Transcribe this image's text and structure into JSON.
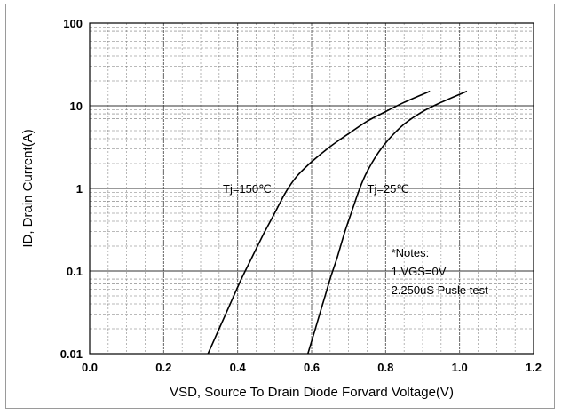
{
  "chart_data": {
    "type": "line",
    "xlabel": "VSD, Source To Drain Diode Forvard Voltage(V)",
    "ylabel": "ID,  Drain Current(A)",
    "xlim": [
      0.0,
      1.2
    ],
    "ylim": [
      0.01,
      100
    ],
    "yscale": "log",
    "grid": true,
    "x_ticks": [
      "0.0",
      "0.2",
      "0.4",
      "0.6",
      "0.8",
      "1.0",
      "1.2"
    ],
    "y_ticks": [
      "0.01",
      "0.1",
      "1",
      "10",
      "100"
    ],
    "series": [
      {
        "name": "Tj=150℃",
        "x": [
          0.32,
          0.35,
          0.38,
          0.41,
          0.44,
          0.47,
          0.5,
          0.53,
          0.56,
          0.6,
          0.65,
          0.7,
          0.75,
          0.8,
          0.85,
          0.92
        ],
        "y": [
          0.01,
          0.02,
          0.04,
          0.08,
          0.15,
          0.28,
          0.5,
          0.9,
          1.4,
          2.1,
          3.2,
          4.6,
          6.5,
          8.5,
          11,
          15
        ]
      },
      {
        "name": "Tj=25℃",
        "x": [
          0.59,
          0.61,
          0.63,
          0.65,
          0.67,
          0.69,
          0.71,
          0.73,
          0.75,
          0.78,
          0.81,
          0.85,
          0.9,
          0.95,
          1.02
        ],
        "y": [
          0.01,
          0.02,
          0.04,
          0.08,
          0.15,
          0.3,
          0.55,
          1.0,
          1.6,
          2.7,
          4.0,
          6.0,
          8.5,
          11,
          15
        ]
      }
    ],
    "series_labels": [
      {
        "text": "Tj=150℃",
        "x": 0.36,
        "y": 1.0
      },
      {
        "text": "Tj=25℃",
        "x": 0.75,
        "y": 1.0
      }
    ],
    "notes": [
      "*Notes:",
      "1.VGS=0V",
      "2.250uS Pusle test"
    ]
  }
}
